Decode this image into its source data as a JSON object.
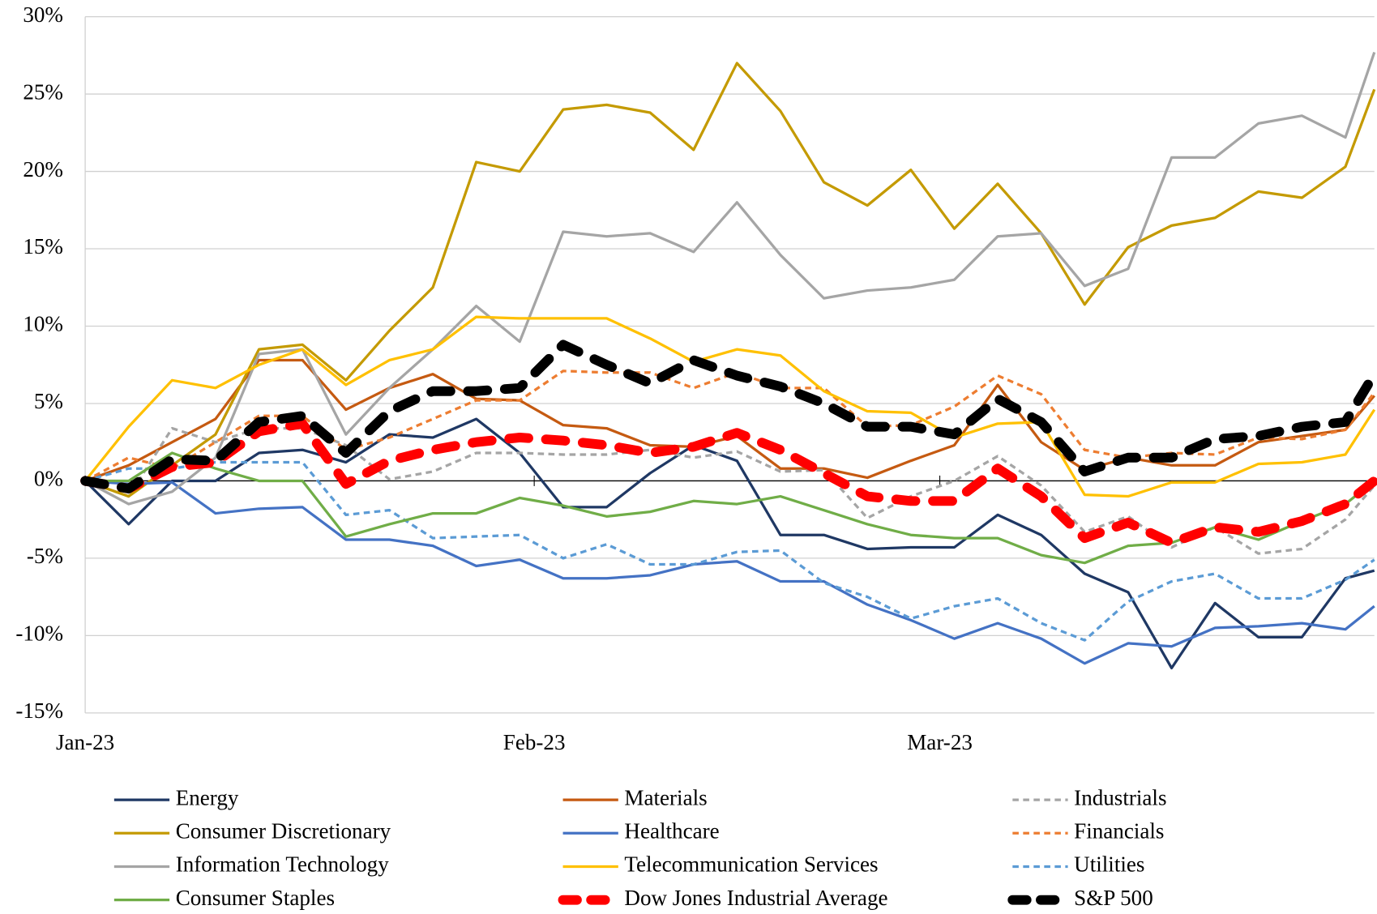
{
  "chart_data": {
    "type": "line",
    "x": [
      0,
      3,
      6,
      9,
      12,
      15,
      18,
      21,
      24,
      27,
      30,
      33,
      36,
      39,
      42,
      45,
      48,
      51,
      54,
      57,
      60,
      63,
      66,
      69,
      72,
      75,
      78,
      81,
      84,
      87,
      89
    ],
    "xlim": [
      0,
      89
    ],
    "xticks": [
      {
        "value": 0,
        "label": "Jan-23"
      },
      {
        "value": 31,
        "label": "Feb-23"
      },
      {
        "value": 59,
        "label": "Mar-23"
      }
    ],
    "ylim": [
      -15,
      30
    ],
    "yticks": [
      {
        "value": -15,
        "label": "-15%"
      },
      {
        "value": -10,
        "label": "-10%"
      },
      {
        "value": -5,
        "label": "-5%"
      },
      {
        "value": 0,
        "label": "0%"
      },
      {
        "value": 5,
        "label": "5%"
      },
      {
        "value": 10,
        "label": "10%"
      },
      {
        "value": 15,
        "label": "15%"
      },
      {
        "value": 20,
        "label": "20%"
      },
      {
        "value": 25,
        "label": "25%"
      },
      {
        "value": 30,
        "label": "30%"
      }
    ],
    "grid": true,
    "legend": "bottom",
    "series": [
      {
        "name": "Energy",
        "color": "#1f3864",
        "style": "solid",
        "values": [
          0,
          -2.8,
          0,
          0,
          1.8,
          2,
          1.2,
          3,
          2.8,
          4,
          1.8,
          -1.7,
          -1.7,
          0.5,
          2.3,
          1.3,
          -3.5,
          -3.5,
          -4.4,
          -4.3,
          -4.3,
          -2.2,
          -3.5,
          -6,
          -7.2,
          -12.1,
          -7.9,
          -10.1,
          -10.1,
          -6.3,
          -5.8
        ]
      },
      {
        "name": "Materials",
        "color": "#c55a11",
        "style": "solid",
        "values": [
          0,
          1,
          2.5,
          4,
          7.8,
          7.8,
          4.6,
          6,
          6.9,
          5.3,
          5.2,
          3.6,
          3.4,
          2.3,
          2.2,
          2.9,
          0.8,
          0.8,
          0.2,
          1.3,
          2.3,
          6.2,
          2.5,
          0.7,
          1.5,
          1,
          1,
          2.5,
          2.9,
          3.3,
          5.5
        ]
      },
      {
        "name": "Industrials",
        "color": "#a5a5a5",
        "style": "dash",
        "values": [
          0,
          -1,
          3.4,
          2.5,
          3.4,
          3.4,
          2.3,
          0.1,
          0.6,
          1.8,
          1.8,
          1.7,
          1.7,
          2,
          1.5,
          1.9,
          0.6,
          0.7,
          -2.4,
          -1,
          0,
          1.6,
          -0.3,
          -3.3,
          -2.3,
          -4.3,
          -3,
          -4.7,
          -4.4,
          -2.5,
          -0.3
        ]
      },
      {
        "name": "Consumer Discretionary",
        "color": "#c49a00",
        "style": "solid",
        "values": [
          0,
          -1,
          1,
          3,
          8.5,
          8.8,
          6.5,
          9.7,
          12.5,
          20.6,
          20,
          24,
          24.3,
          23.8,
          21.4,
          27,
          23.9,
          19.3,
          17.8,
          20.1,
          16.3,
          19.2,
          16,
          11.4,
          15.1,
          16.5,
          17,
          18.7,
          18.3,
          20.3,
          25.3
        ]
      },
      {
        "name": "Healthcare",
        "color": "#4472c4",
        "style": "solid",
        "values": [
          0,
          -0.2,
          -0.1,
          -2.1,
          -1.8,
          -1.7,
          -3.8,
          -3.8,
          -4.2,
          -5.5,
          -5.1,
          -6.3,
          -6.3,
          -6.1,
          -5.4,
          -5.2,
          -6.5,
          -6.5,
          -8,
          -9,
          -10.2,
          -9.2,
          -10.2,
          -11.8,
          -10.5,
          -10.7,
          -9.5,
          -9.4,
          -9.2,
          -9.6,
          -8.1
        ]
      },
      {
        "name": "Financials",
        "color": "#ed7d31",
        "style": "dash",
        "values": [
          0,
          1.5,
          0.8,
          2.5,
          4.2,
          4.2,
          2,
          2.8,
          4,
          5.2,
          5.2,
          7.1,
          7,
          7,
          6,
          7,
          6,
          6,
          3.5,
          3.6,
          4.8,
          6.8,
          5.6,
          2,
          1.5,
          1.8,
          1.7,
          2.8,
          2.7,
          3.3,
          5.7
        ]
      },
      {
        "name": "Information Technology",
        "color": "#a5a5a5",
        "style": "solid",
        "values": [
          0,
          -1.5,
          -0.7,
          1.5,
          8.2,
          8.5,
          3,
          6,
          8.5,
          11.3,
          9,
          16.1,
          15.8,
          16,
          14.8,
          18,
          14.6,
          11.8,
          12.3,
          12.5,
          13,
          15.8,
          16,
          12.6,
          13.7,
          20.9,
          20.9,
          23.1,
          23.6,
          22.2,
          27.7
        ]
      },
      {
        "name": "Telecommunication Services",
        "color": "#ffc000",
        "style": "solid",
        "values": [
          0,
          3.5,
          6.5,
          6,
          7.5,
          8.5,
          6.2,
          7.8,
          8.5,
          10.6,
          10.5,
          10.5,
          10.5,
          9.2,
          7.7,
          8.5,
          8.1,
          5.8,
          4.5,
          4.4,
          2.8,
          3.7,
          3.8,
          -0.9,
          -1,
          -0.1,
          -0.1,
          1.1,
          1.2,
          1.7,
          4.6
        ]
      },
      {
        "name": "Utilities",
        "color": "#5b9bd5",
        "style": "dash",
        "values": [
          0,
          0.8,
          0.8,
          1.2,
          1.2,
          1.2,
          -2.2,
          -1.9,
          -3.7,
          -3.6,
          -3.5,
          -5,
          -4.1,
          -5.4,
          -5.4,
          -4.6,
          -4.5,
          -6.6,
          -7.5,
          -8.9,
          -8.1,
          -7.6,
          -9.2,
          -10.3,
          -7.8,
          -6.5,
          -6,
          -7.6,
          -7.6,
          -6.4,
          -5.1
        ]
      },
      {
        "name": "Consumer Staples",
        "color": "#70ad47",
        "style": "solid",
        "values": [
          0,
          0,
          1.8,
          0.8,
          0,
          0,
          -3.6,
          -2.8,
          -2.1,
          -2.1,
          -1.1,
          -1.6,
          -2.3,
          -2,
          -1.3,
          -1.5,
          -1,
          -1.9,
          -2.8,
          -3.5,
          -3.7,
          -3.7,
          -4.8,
          -5.3,
          -4.2,
          -4,
          -3,
          -3.8,
          -2.6,
          -1.5,
          0
        ]
      },
      {
        "name": "Dow Jones Industrial Average",
        "color": "#ff0000",
        "style": "bold-dash",
        "values": [
          0,
          -0.5,
          0.9,
          1.2,
          3.2,
          3.7,
          -0.2,
          1.3,
          2,
          2.5,
          2.8,
          2.6,
          2.3,
          1.8,
          2.2,
          3.1,
          2,
          0.5,
          -1,
          -1.3,
          -1.3,
          0.8,
          -1,
          -3.7,
          -2.7,
          -4,
          -3,
          -3.3,
          -2.6,
          -1.5,
          0
        ]
      },
      {
        "name": "S&P 500",
        "color": "#000000",
        "style": "bold-dash",
        "values": [
          0,
          -0.5,
          1.4,
          1.3,
          3.8,
          4.2,
          1.8,
          4.5,
          5.8,
          5.8,
          6,
          8.8,
          7.5,
          6.3,
          7.8,
          6.8,
          6.1,
          5,
          3.5,
          3.5,
          3,
          5.3,
          3.8,
          0.6,
          1.5,
          1.5,
          2.7,
          2.9,
          3.5,
          3.8,
          6.9
        ]
      }
    ]
  }
}
